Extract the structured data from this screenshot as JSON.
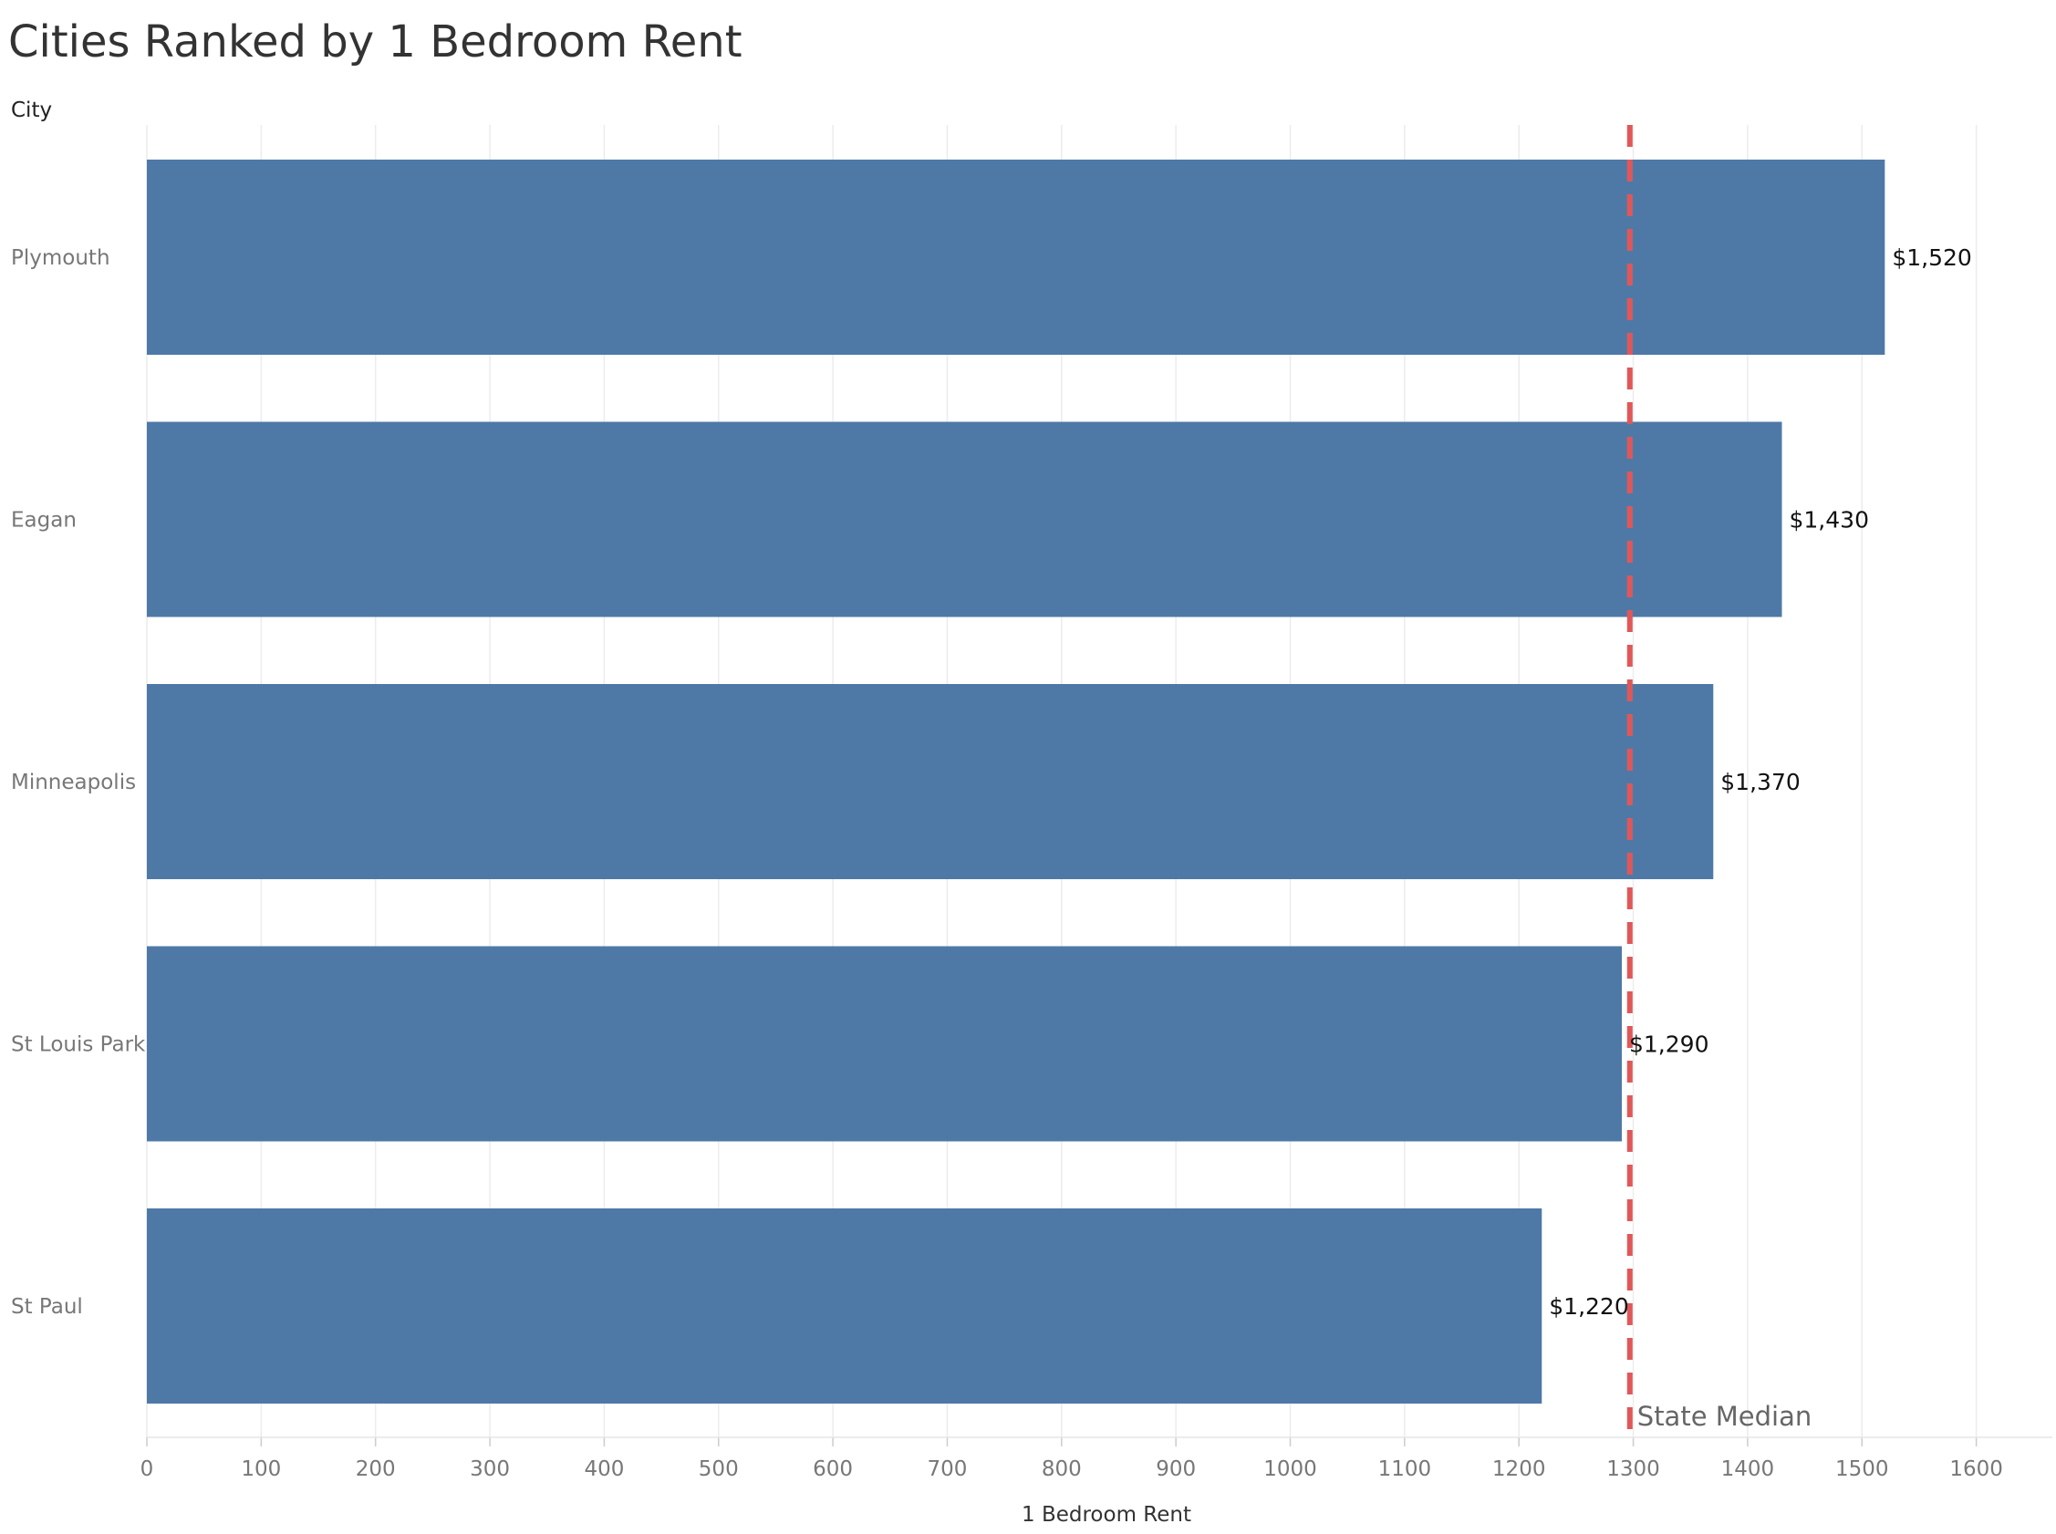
{
  "chart_data": {
    "type": "bar",
    "orientation": "horizontal",
    "title": "Cities Ranked by 1 Bedroom Rent",
    "row_header": "City",
    "xlabel": "1 Bedroom Rent",
    "categories": [
      "Plymouth",
      "Eagan",
      "Minneapolis",
      "St Louis Park",
      "St Paul"
    ],
    "values": [
      1520,
      1430,
      1370,
      1290,
      1220
    ],
    "value_labels": [
      "$1,520",
      "$1,430",
      "$1,370",
      "$1,290",
      "$1,220"
    ],
    "xlim": [
      0,
      1600
    ],
    "xticks": [
      0,
      100,
      200,
      300,
      400,
      500,
      600,
      700,
      800,
      900,
      1000,
      1100,
      1200,
      1300,
      1400,
      1500,
      1600
    ],
    "grid": true,
    "bar_color": "#4e79a7",
    "reference_line": {
      "value": 1297,
      "label": "State Median",
      "color": "#e15759",
      "style": "dashed"
    }
  }
}
